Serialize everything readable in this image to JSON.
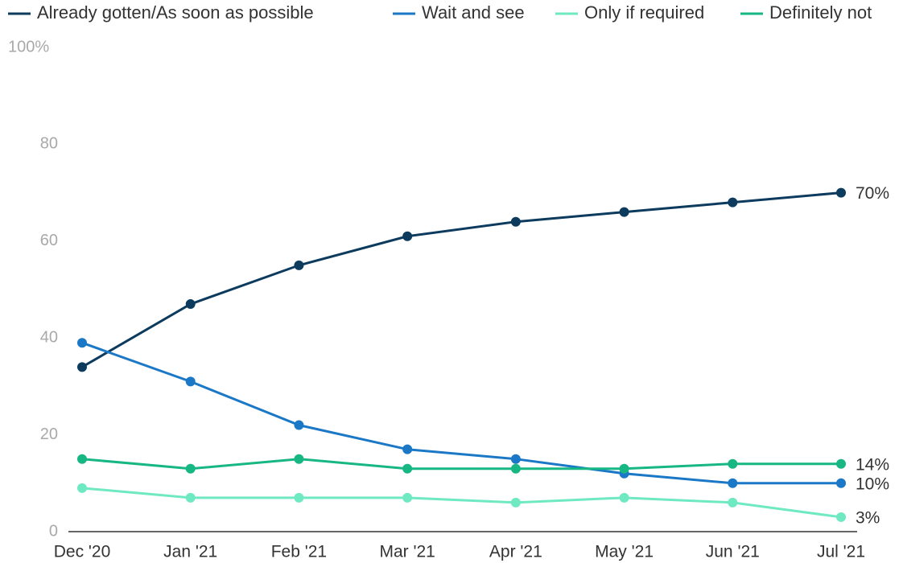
{
  "chart_data": {
    "type": "line",
    "categories": [
      "Dec '20",
      "Jan '21",
      "Feb '21",
      "Mar '21",
      "Apr '21",
      "May '21",
      "Jun '21",
      "Jul '21"
    ],
    "series": [
      {
        "name": "Already gotten/As soon as possible",
        "color": "#0c3b5e",
        "values": [
          34,
          47,
          55,
          61,
          64,
          66,
          68,
          70
        ],
        "value_labels": [
          null,
          null,
          null,
          null,
          null,
          null,
          null,
          "70%"
        ]
      },
      {
        "name": "Wait and see",
        "color": "#1b78c6",
        "values": [
          39,
          31,
          22,
          17,
          15,
          12,
          10,
          10
        ],
        "value_labels": [
          null,
          null,
          null,
          null,
          null,
          null,
          null,
          "10%"
        ]
      },
      {
        "name": "Only if required",
        "color": "#6fe9c2",
        "values": [
          9,
          7,
          7,
          7,
          6,
          7,
          6,
          3
        ],
        "value_labels": [
          null,
          null,
          null,
          null,
          null,
          null,
          null,
          "3%"
        ]
      },
      {
        "name": "Definitely not",
        "color": "#17b784",
        "values": [
          15,
          13,
          15,
          13,
          13,
          13,
          14,
          14
        ],
        "value_labels": [
          null,
          null,
          null,
          null,
          null,
          null,
          null,
          "14%"
        ]
      }
    ],
    "ylim": [
      0,
      100
    ],
    "yticks": [
      0,
      20,
      40,
      60,
      80,
      {
        "value": 100,
        "label": "100%"
      }
    ],
    "grid": false,
    "legend": "top"
  }
}
